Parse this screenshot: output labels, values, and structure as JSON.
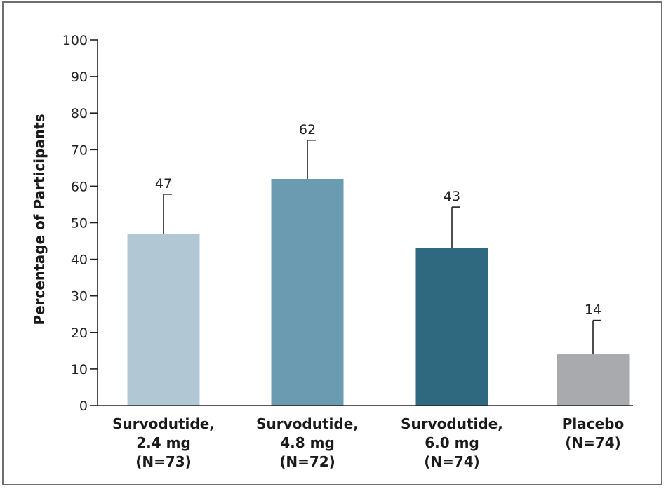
{
  "chart_data": {
    "type": "bar",
    "title": "",
    "xlabel": "",
    "ylabel": "Percentage of Participants",
    "ylim": [
      0,
      100
    ],
    "yticks": [
      0,
      10,
      20,
      30,
      40,
      50,
      60,
      70,
      80,
      90,
      100
    ],
    "grid": false,
    "legend": "none",
    "categories": [
      [
        "Survodutide,",
        "2.4 mg",
        "(N=73)"
      ],
      [
        "Survodutide,",
        "4.8 mg",
        "(N=72)"
      ],
      [
        "Survodutide,",
        "6.0 mg",
        "(N=74)"
      ],
      [
        "Placebo",
        "(N=74)"
      ]
    ],
    "values": [
      47,
      62,
      43,
      14
    ],
    "error_upper": [
      57.8,
      72.6,
      54.3,
      23.3
    ],
    "colors": [
      "#b1c8d4",
      "#6a9bb0",
      "#2e6980",
      "#a8aaad"
    ]
  }
}
